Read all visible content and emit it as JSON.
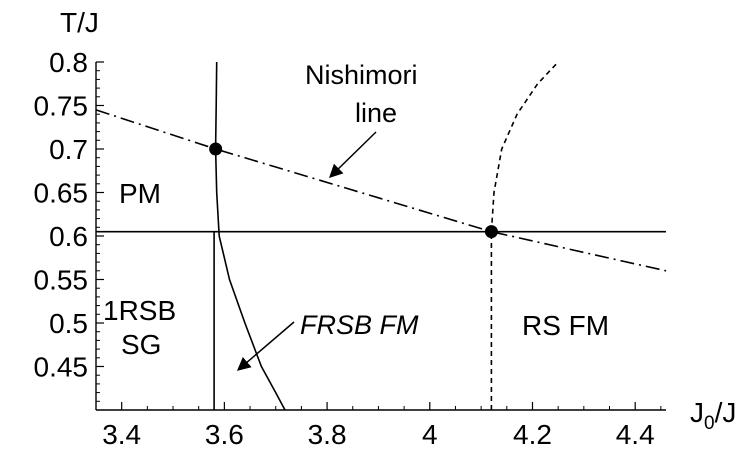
{
  "chart_data": {
    "type": "line",
    "xlabel": "J",
    "xlabel_sub": "0",
    "xlabel_suffix": "/J",
    "ylabel": "T/J",
    "xlim": [
      3.35,
      4.46
    ],
    "ylim": [
      0.4,
      0.8
    ],
    "x_ticks": [
      3.4,
      3.6,
      3.8,
      4.0,
      4.2,
      4.4
    ],
    "x_tick_labels": [
      "3.4",
      "3.6",
      "3.8",
      "4",
      "4.2",
      "4.4"
    ],
    "y_ticks": [
      0.45,
      0.5,
      0.55,
      0.6,
      0.65,
      0.7,
      0.75,
      0.8
    ],
    "y_tick_labels": [
      "0.45",
      "0.5",
      "0.55",
      "0.6",
      "0.65",
      "0.7",
      "0.75",
      "0.8"
    ],
    "grid": false,
    "series": [
      {
        "style": "solid",
        "x": [
          3.58,
          3.58
        ],
        "y": [
          0.4,
          0.605
        ]
      },
      {
        "style": "solid",
        "x": [
          3.35,
          4.46
        ],
        "y": [
          0.605,
          0.605
        ]
      },
      {
        "style": "solid",
        "x": [
          3.585,
          3.584,
          3.583,
          3.585,
          3.59,
          3.61,
          3.64,
          3.672,
          3.7,
          3.718
        ],
        "y": [
          0.8,
          0.75,
          0.7,
          0.65,
          0.6,
          0.55,
          0.5,
          0.45,
          0.42,
          0.4
        ]
      },
      {
        "style": "dashed",
        "x": [
          4.12,
          4.12
        ],
        "y": [
          0.4,
          0.605
        ]
      },
      {
        "style": "dashed",
        "x": [
          4.12,
          4.125,
          4.14,
          4.17,
          4.21,
          4.25
        ],
        "y": [
          0.605,
          0.65,
          0.7,
          0.74,
          0.775,
          0.8
        ]
      },
      {
        "style": "dashdot",
        "x": [
          3.35,
          3.583,
          4.12,
          4.46
        ],
        "y": [
          0.745,
          0.7,
          0.605,
          0.56
        ]
      }
    ],
    "points": [
      {
        "x": 3.583,
        "y": 0.7
      },
      {
        "x": 4.12,
        "y": 0.605
      }
    ],
    "labels": {
      "pm": "PM",
      "onersb_line1": "1RSB",
      "onersb_line2": "SG",
      "frsb": "FRSB FM",
      "rsfm": "RS FM",
      "nishimori_line1": "Nishimori",
      "nishimori_line2": "line"
    }
  }
}
